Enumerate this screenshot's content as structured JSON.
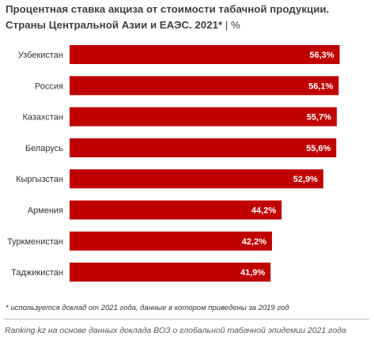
{
  "title": "Процентная ставка акциза  от стоимости табачной продукции. Страны Центральной Азии и ЕАЭС. 2021*",
  "unit_label": "| %",
  "footnote": "* используется доклад от 2021 года, данные в котором приведены за 2019 год",
  "source": "Ranking.kz на основе данных доклада ВОЗ о глобальной табачной эпидемии 2021 года",
  "colors": {
    "bar": "#c00000",
    "value_text": "#ffffff",
    "category_text": "#333333"
  },
  "chart_data": {
    "type": "bar",
    "orientation": "horizontal",
    "categories": [
      "Узбекистан",
      "Россия",
      "Казахстан",
      "Беларусь",
      "Кыргызстан",
      "Армения",
      "Туркменистан",
      "Таджикистан"
    ],
    "values": [
      56.3,
      56.1,
      55.7,
      55.6,
      52.9,
      44.2,
      42.2,
      41.9
    ],
    "value_labels": [
      "56,3%",
      "56,1%",
      "55,7%",
      "55,6%",
      "52,9%",
      "44,2%",
      "42,2%",
      "41,9%"
    ],
    "xlim": [
      0,
      60
    ],
    "grid": false,
    "legend": "none"
  }
}
